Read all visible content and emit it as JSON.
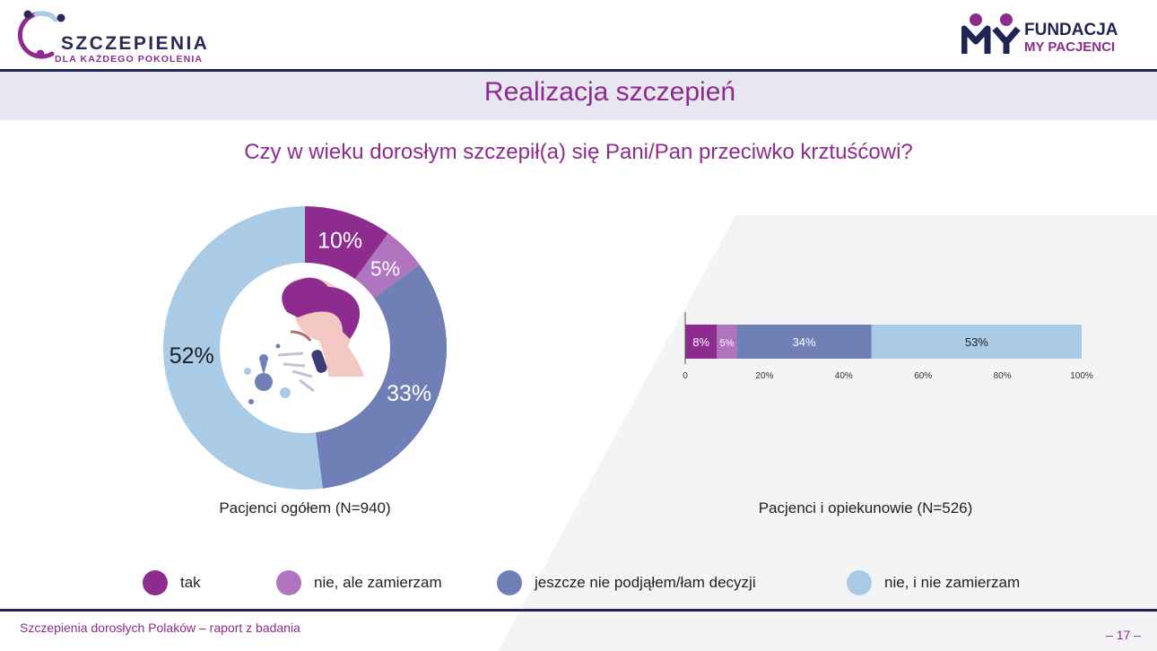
{
  "header": {
    "logo_left": {
      "brand": "SZCZEPIENIA",
      "tagline": "DLA KAŻDEGO POKOLENIA"
    },
    "logo_right": {
      "line1": "FUNDACJA",
      "line2": "MY PACJENCI"
    },
    "page_title": "Realizacja szczepień"
  },
  "question": "Czy w wieku dorosłym szczepił(a) się Pani/Pan przeciwko krztuśćowi?",
  "colors": {
    "tak": "#8e2b8f",
    "nie_ale": "#b174bf",
    "jeszcze": "#7080b7",
    "nie_i": "#a9cbe6",
    "accent": "#8e2b8f",
    "navy": "#1f2452"
  },
  "chart_data": [
    {
      "type": "pie",
      "variant": "donut",
      "caption": "Pacjenci ogółem (N=940)",
      "categories": [
        "tak",
        "nie, ale zamierzam",
        "jeszcze nie podjąłem/łam decyzji",
        "nie, i nie zamierzam"
      ],
      "values": [
        10,
        5,
        33,
        52
      ],
      "labels": [
        "10%",
        "5%",
        "33%",
        "52%"
      ]
    },
    {
      "type": "bar",
      "orientation": "horizontal",
      "stacked": true,
      "caption": "Pacjenci i opiekunowie (N=526)",
      "categories": [
        "tak",
        "nie, ale zamierzam",
        "jeszcze nie podjąłem/łam decyzji",
        "nie, i nie zamierzam"
      ],
      "values": [
        8,
        5,
        34,
        53
      ],
      "labels": [
        "8%",
        "5%",
        "34%",
        "53%"
      ],
      "xlim": [
        0,
        100
      ],
      "xticks": [
        "0",
        "20%",
        "40%",
        "60%",
        "80%",
        "100%"
      ]
    }
  ],
  "legend": [
    {
      "label": "tak"
    },
    {
      "label": "nie, ale zamierzam"
    },
    {
      "label": "jeszcze nie podjąłem/łam decyzji"
    },
    {
      "label": "nie, i nie zamierzam"
    }
  ],
  "footer": {
    "text": "Szczepienia dorosłych Polaków – raport z badania",
    "page_number": "– 17 –"
  }
}
